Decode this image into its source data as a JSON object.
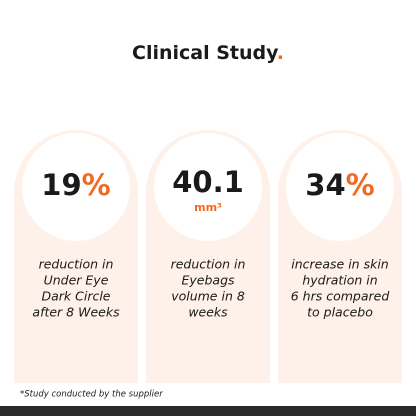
{
  "header": {
    "title": "Clinical Study",
    "title_dot": "."
  },
  "cards": [
    {
      "value": "19",
      "unit": "%",
      "unit_below": false,
      "lines": [
        "reduction in",
        "Under Eye",
        "Dark Circle",
        "after 8 Weeks"
      ]
    },
    {
      "value": "40.1",
      "unit": "mm³",
      "unit_below": true,
      "lines": [
        "reduction in",
        "Eyebags",
        "volume in 8",
        "weeks"
      ]
    },
    {
      "value": "34",
      "unit": "%",
      "unit_below": false,
      "lines": [
        "increase in skin",
        "hydration in",
        "6 hrs compared",
        "to placebo"
      ]
    }
  ],
  "footnote": "*Study conducted by the supplier"
}
